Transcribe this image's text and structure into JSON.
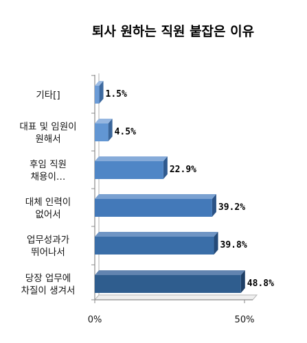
{
  "chart_data": {
    "type": "bar",
    "orientation": "horizontal",
    "title": "퇴사 원하는 직원 붙잡은 이유",
    "categories": [
      "기타[]",
      "대표 및 임원이 원해서",
      "후임 직원 채용이…",
      "대체 인력이 없어서",
      "업무성과가 뛰어나서",
      "당장 업무에 차질이 생겨서"
    ],
    "category_lines": [
      [
        "기타[]"
      ],
      [
        "대표 및 임원이",
        "원해서"
      ],
      [
        "후임 직원",
        "채용이…"
      ],
      [
        "대체 인력이",
        "없어서"
      ],
      [
        "업무성과가",
        "뛰어나서"
      ],
      [
        "당장 업무에",
        "차질이 생겨서"
      ]
    ],
    "values": [
      1.5,
      4.5,
      22.9,
      39.2,
      39.8,
      48.8
    ],
    "value_labels": [
      "1.5%",
      "4.5%",
      "22.9%",
      "39.2%",
      "39.8%",
      "48.8%"
    ],
    "xlim": [
      0,
      50
    ],
    "x_ticks": [
      "0%",
      "50%"
    ],
    "grid": false,
    "legend": "none",
    "colors": {
      "front": [
        "#6b9bd6",
        "#6296d3",
        "#4f86c6",
        "#4379b9",
        "#3a6ea8",
        "#2f5d8e"
      ],
      "side": [
        "#3d6aa0",
        "#3a669b",
        "#2f5a8f",
        "#2a5286",
        "#244a78",
        "#1e3f66"
      ],
      "top": [
        "#9cbbe3",
        "#95b6e0",
        "#86abd9",
        "#7aa1d1",
        "#6f95c4",
        "#6284b0"
      ]
    }
  }
}
